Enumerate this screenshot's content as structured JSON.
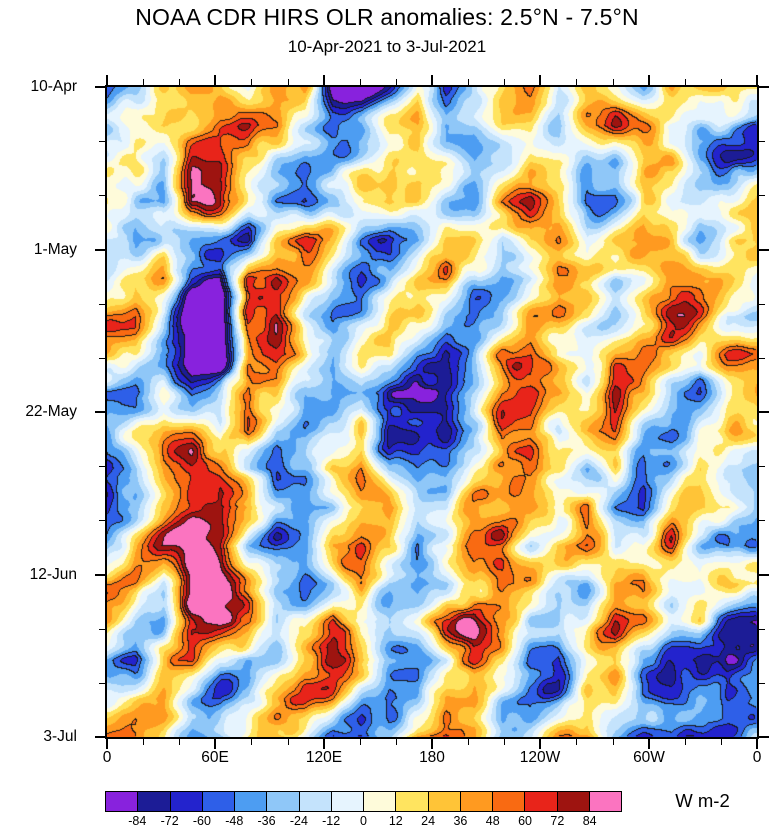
{
  "chart_data": {
    "type": "heatmap",
    "title": "NOAA CDR HIRS OLR anomalies: 2.5°N - 7.5°N",
    "subtitle": "10-Apr-2021 to 3-Jul-2021",
    "x_axis": {
      "label": "",
      "tick_labels": [
        "0",
        "60E",
        "120E",
        "180",
        "120W",
        "60W",
        "0"
      ],
      "tick_degrees": [
        0,
        60,
        120,
        180,
        240,
        300,
        360
      ],
      "minor_step_deg": 20,
      "range_deg": [
        0,
        360
      ]
    },
    "y_axis": {
      "label": "",
      "tick_labels": [
        "10-Apr",
        "1-May",
        "22-May",
        "12-Jun",
        "3-Jul"
      ],
      "tick_day_offsets": [
        0,
        21,
        42,
        63,
        84
      ],
      "minor_step_days": 7,
      "range_days": [
        0,
        84
      ]
    },
    "colorbar": {
      "label": "W m-2",
      "levels": [
        -84,
        -72,
        -60,
        -48,
        -36,
        -24,
        -12,
        0,
        12,
        24,
        36,
        48,
        60,
        72,
        84
      ],
      "colors": [
        "#8822DD",
        "#1C1C96",
        "#2323CD",
        "#2E5FE8",
        "#4D9DF2",
        "#8FC7F8",
        "#C4E3FC",
        "#E6F4FE",
        "#FEFBDA",
        "#FFE45F",
        "#FFC437",
        "#FF9A20",
        "#F96A12",
        "#E8241A",
        "#9E1410",
        "#FB74C0"
      ]
    },
    "grid": {
      "units": "W m-2",
      "lon_start_deg": 0,
      "lon_step_deg": 15,
      "time_step_days": 4.94,
      "cols": 24,
      "rows": 18,
      "values": [
        [
          -45,
          -20,
          25,
          50,
          35,
          -15,
          30,
          55,
          -85,
          -95,
          -40,
          25,
          -65,
          -35,
          15,
          40,
          -25,
          35,
          25,
          -15,
          45,
          20,
          20,
          45
        ],
        [
          -30,
          15,
          40,
          30,
          60,
          70,
          45,
          -25,
          -70,
          -55,
          20,
          35,
          -45,
          -20,
          30,
          20,
          -40,
          15,
          50,
          30,
          -20,
          -35,
          -15,
          -40
        ],
        [
          20,
          35,
          -25,
          65,
          75,
          30,
          -35,
          -70,
          -60,
          -20,
          35,
          50,
          20,
          -30,
          -15,
          45,
          30,
          -25,
          -45,
          20,
          40,
          -30,
          -50,
          -20
        ],
        [
          35,
          -15,
          -40,
          70,
          60,
          -20,
          -55,
          -65,
          -30,
          25,
          55,
          30,
          -25,
          -45,
          25,
          60,
          20,
          -35,
          -20,
          35,
          -15,
          -45,
          -30,
          15
        ],
        [
          -25,
          -45,
          20,
          -20,
          -30,
          -60,
          35,
          60,
          25,
          -40,
          -60,
          -25,
          40,
          25,
          -35,
          30,
          45,
          -20,
          30,
          50,
          25,
          -25,
          20,
          40
        ],
        [
          -15,
          30,
          45,
          -60,
          -85,
          85,
          75,
          25,
          -35,
          -55,
          -25,
          35,
          55,
          -30,
          -50,
          -20,
          35,
          25,
          -35,
          -15,
          40,
          55,
          30,
          -20
        ],
        [
          25,
          40,
          -30,
          -105,
          -95,
          90,
          80,
          -20,
          -45,
          -30,
          30,
          45,
          -25,
          -60,
          -35,
          25,
          50,
          30,
          -25,
          25,
          55,
          35,
          -30,
          -45
        ],
        [
          40,
          25,
          -45,
          -95,
          -110,
          70,
          85,
          35,
          -25,
          35,
          50,
          -30,
          -70,
          -45,
          20,
          40,
          -20,
          -40,
          30,
          45,
          25,
          -15,
          35,
          50
        ],
        [
          -20,
          -40,
          30,
          -55,
          -35,
          45,
          30,
          -30,
          -50,
          -25,
          -65,
          -80,
          -75,
          -30,
          35,
          55,
          30,
          -25,
          45,
          25,
          -30,
          -45,
          20,
          35
        ],
        [
          -35,
          25,
          50,
          35,
          -25,
          60,
          -35,
          -55,
          -20,
          40,
          -75,
          -70,
          -85,
          -40,
          50,
          45,
          -20,
          35,
          55,
          -25,
          -40,
          20,
          45,
          25
        ],
        [
          -55,
          -30,
          40,
          60,
          30,
          -35,
          -60,
          -25,
          45,
          60,
          -30,
          -55,
          -35,
          25,
          45,
          60,
          40,
          -30,
          25,
          -45,
          -20,
          40,
          -25,
          -35
        ],
        [
          -50,
          -25,
          35,
          75,
          85,
          45,
          -40,
          -65,
          -30,
          35,
          55,
          -25,
          -45,
          30,
          55,
          50,
          -25,
          35,
          -35,
          -55,
          25,
          45,
          30,
          -20
        ],
        [
          -40,
          20,
          55,
          90,
          80,
          -25,
          -55,
          -35,
          40,
          60,
          25,
          -35,
          30,
          60,
          45,
          -20,
          35,
          50,
          -30,
          -25,
          40,
          -35,
          -50,
          -30
        ],
        [
          25,
          40,
          -25,
          85,
          95,
          35,
          -30,
          -60,
          -25,
          45,
          -30,
          -55,
          -25,
          40,
          55,
          35,
          -25,
          -45,
          35,
          50,
          -25,
          -35,
          25,
          40
        ],
        [
          35,
          -20,
          -45,
          70,
          80,
          55,
          -45,
          -25,
          35,
          -40,
          -60,
          -30,
          45,
          65,
          30,
          -35,
          -55,
          -25,
          45,
          30,
          -20,
          25,
          -40,
          -55
        ],
        [
          -25,
          -50,
          25,
          45,
          -30,
          -55,
          -35,
          30,
          55,
          25,
          -35,
          -50,
          -25,
          50,
          40,
          -30,
          -45,
          30,
          55,
          -25,
          -35,
          -60,
          -75,
          -35
        ],
        [
          20,
          35,
          50,
          -25,
          -45,
          -20,
          40,
          60,
          30,
          -30,
          -55,
          -30,
          60,
          45,
          -25,
          -50,
          -30,
          40,
          25,
          -40,
          -55,
          -35,
          -90,
          -50
        ],
        [
          40,
          55,
          25,
          -40,
          -20,
          35,
          55,
          25,
          -35,
          -55,
          -25,
          45,
          70,
          30,
          -40,
          -30,
          35,
          50,
          -25,
          -50,
          -30,
          -60,
          -45,
          -25
        ]
      ]
    }
  }
}
